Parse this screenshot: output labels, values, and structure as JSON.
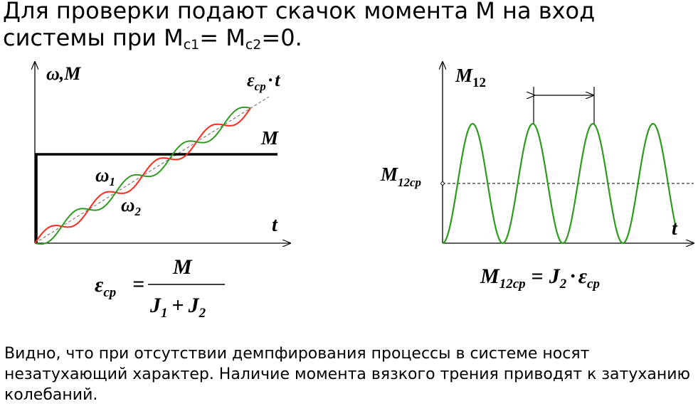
{
  "heading": {
    "line1": "Для проверки подают скачок момента М на вход",
    "line2_prefix": "системы при М",
    "sub1": "с1",
    "line2_mid": "= М",
    "sub2": "с2",
    "line2_suffix": "=0."
  },
  "left_plot": {
    "y_axis_label": "ω,M",
    "x_axis_label": "t",
    "eps_label": "ε",
    "eps_sub": "cp",
    "eps_dot": "·",
    "eps_t": "t",
    "m_label": "M",
    "omega1": "ω",
    "omega1_sub": "1",
    "omega2": "ω",
    "omega2_sub": "2",
    "colors": {
      "omega1": "#ff2a1a",
      "omega2": "#2e9a1e",
      "step": "#000000"
    }
  },
  "left_formula": {
    "lhs": "ε",
    "lhs_sub": "cp",
    "eq": "=",
    "numerator": "M",
    "den_j1": "J",
    "den_j1_sub": "1",
    "den_plus": "+",
    "den_j2": "J",
    "den_j2_sub": "2"
  },
  "right_plot": {
    "y_axis_label": "M",
    "y_axis_sub": "12",
    "x_axis_label": "t",
    "mean_label": "M",
    "mean_sub": "12cp",
    "color": "#2e9a1e"
  },
  "right_formula": {
    "lhs": "M",
    "lhs_sub": "12cp",
    "eq": "=",
    "j": "J",
    "j_sub": "2",
    "dot": "·",
    "eps": "ε",
    "eps_sub": "cp"
  },
  "footer": {
    "text": " Видно, что при отсутствии демпфирования процессы в системе носят незатухающий характер. Наличие момента вязкого трения приводят к затуханию колебаний."
  }
}
